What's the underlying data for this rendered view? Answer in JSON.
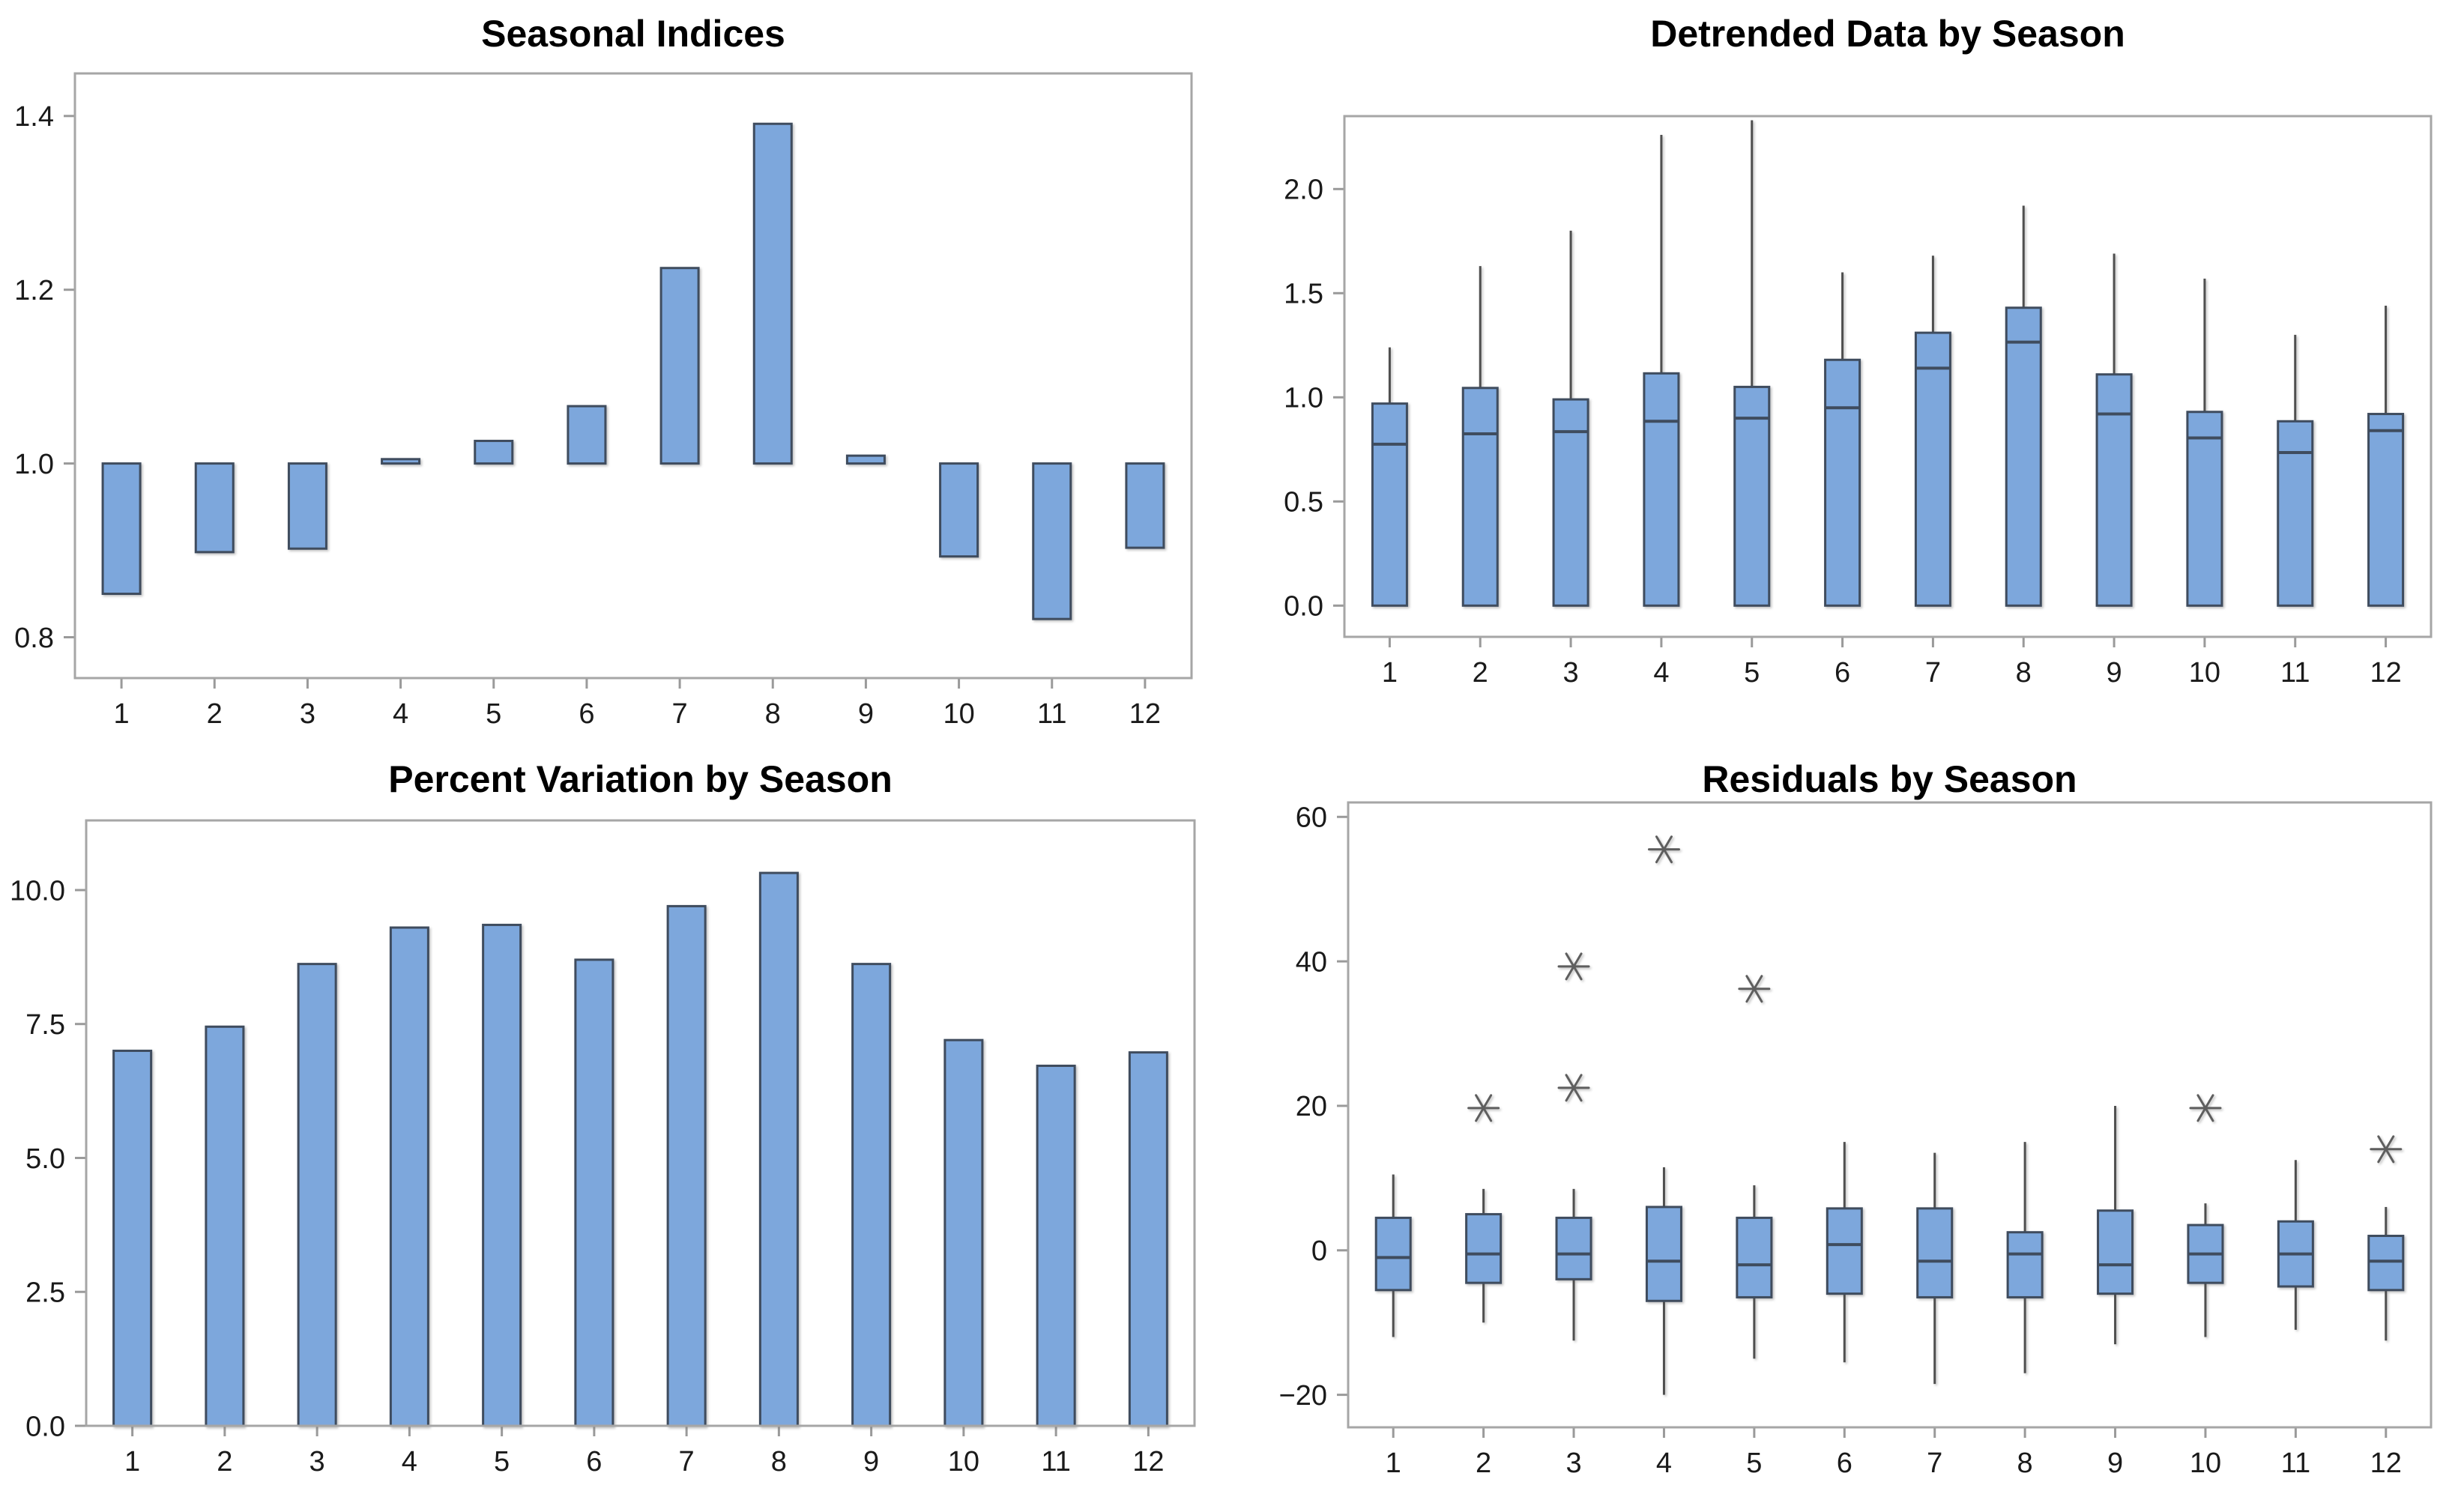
{
  "page": {
    "background": "#ffffff"
  },
  "colors": {
    "box_fill": "#7DA7DC",
    "box_border": "#3F4C5E",
    "median": "#3F4C5E",
    "whisker": "#4F4F4F",
    "outlier": "#5E5E5E",
    "frame": "#A6A6A6",
    "tick": "#9A9A9A",
    "label": "#1A1A1A",
    "title": "#000000"
  },
  "chart_data": [
    {
      "id": "seasonal-indices",
      "type": "bar",
      "title": "Seasonal Indices",
      "xlabel": "",
      "ylabel": "",
      "grid": false,
      "categories": [
        "1",
        "2",
        "3",
        "4",
        "5",
        "6",
        "7",
        "8",
        "9",
        "10",
        "11",
        "12"
      ],
      "baseline": 1.0,
      "values": [
        0.85,
        0.898,
        0.902,
        1.005,
        1.026,
        1.066,
        1.225,
        1.391,
        1.009,
        0.893,
        0.821,
        0.903
      ],
      "ylim": [
        0.753,
        1.449
      ],
      "yticks": [
        {
          "v": 0.8,
          "label": "0.8"
        },
        {
          "v": 1.0,
          "label": "1.0"
        },
        {
          "v": 1.2,
          "label": "1.2"
        },
        {
          "v": 1.4,
          "label": "1.4"
        }
      ]
    },
    {
      "id": "detrended-data-by-season",
      "type": "boxplot",
      "title": "Detrended Data by Season",
      "xlabel": "",
      "ylabel": "",
      "grid": false,
      "categories": [
        "1",
        "2",
        "3",
        "4",
        "5",
        "6",
        "7",
        "8",
        "9",
        "10",
        "11",
        "12"
      ],
      "boxes": [
        {
          "whislo": 0.0,
          "q1": 0.0,
          "med": 0.775,
          "q3": 0.97,
          "whishi": 1.24,
          "outliers": []
        },
        {
          "whislo": 0.0,
          "q1": 0.0,
          "med": 0.825,
          "q3": 1.045,
          "whishi": 1.63,
          "outliers": []
        },
        {
          "whislo": 0.0,
          "q1": 0.0,
          "med": 0.835,
          "q3": 0.99,
          "whishi": 1.8,
          "outliers": []
        },
        {
          "whislo": 0.0,
          "q1": 0.0,
          "med": 0.885,
          "q3": 1.115,
          "whishi": 2.26,
          "outliers": []
        },
        {
          "whislo": 0.0,
          "q1": 0.0,
          "med": 0.9,
          "q3": 1.05,
          "whishi": 2.33,
          "outliers": []
        },
        {
          "whislo": 0.0,
          "q1": 0.0,
          "med": 0.95,
          "q3": 1.18,
          "whishi": 1.6,
          "outliers": []
        },
        {
          "whislo": 0.0,
          "q1": 0.0,
          "med": 1.14,
          "q3": 1.31,
          "whishi": 1.68,
          "outliers": []
        },
        {
          "whislo": 0.0,
          "q1": 0.0,
          "med": 1.265,
          "q3": 1.43,
          "whishi": 1.92,
          "outliers": []
        },
        {
          "whislo": 0.0,
          "q1": 0.0,
          "med": 0.92,
          "q3": 1.11,
          "whishi": 1.69,
          "outliers": []
        },
        {
          "whislo": 0.0,
          "q1": 0.0,
          "med": 0.805,
          "q3": 0.93,
          "whishi": 1.57,
          "outliers": []
        },
        {
          "whislo": 0.0,
          "q1": 0.0,
          "med": 0.735,
          "q3": 0.885,
          "whishi": 1.3,
          "outliers": []
        },
        {
          "whislo": 0.0,
          "q1": 0.0,
          "med": 0.84,
          "q3": 0.92,
          "whishi": 1.44,
          "outliers": []
        }
      ],
      "ylim": [
        -0.15,
        2.35
      ],
      "yticks": [
        {
          "v": 0.0,
          "label": "0.0"
        },
        {
          "v": 0.5,
          "label": "0.5"
        },
        {
          "v": 1.0,
          "label": "1.0"
        },
        {
          "v": 1.5,
          "label": "1.5"
        },
        {
          "v": 2.0,
          "label": "2.0"
        }
      ]
    },
    {
      "id": "percent-variation-by-season",
      "type": "bar",
      "title": "Percent Variation by Season",
      "xlabel": "",
      "ylabel": "",
      "grid": false,
      "categories": [
        "1",
        "2",
        "3",
        "4",
        "5",
        "6",
        "7",
        "8",
        "9",
        "10",
        "11",
        "12"
      ],
      "baseline": 0.0,
      "values": [
        7.0,
        7.45,
        8.62,
        9.3,
        9.35,
        8.7,
        9.7,
        10.32,
        8.62,
        7.2,
        6.72,
        6.97
      ],
      "ylim": [
        0,
        11.3
      ],
      "yticks": [
        {
          "v": 0.0,
          "label": "0.0"
        },
        {
          "v": 2.5,
          "label": "2.5"
        },
        {
          "v": 5.0,
          "label": "5.0"
        },
        {
          "v": 7.5,
          "label": "7.5"
        },
        {
          "v": 10.0,
          "label": "10.0"
        }
      ]
    },
    {
      "id": "residuals-by-season",
      "type": "boxplot",
      "title": "Residuals by Season",
      "xlabel": "",
      "ylabel": "",
      "grid": false,
      "categories": [
        "1",
        "2",
        "3",
        "4",
        "5",
        "6",
        "7",
        "8",
        "9",
        "10",
        "11",
        "12"
      ],
      "boxes": [
        {
          "whislo": -12.0,
          "q1": -5.5,
          "med": -1.0,
          "q3": 4.5,
          "whishi": 10.5,
          "outliers": []
        },
        {
          "whislo": -10.0,
          "q1": -4.5,
          "med": -0.5,
          "q3": 5.0,
          "whishi": 8.5,
          "outliers": [
            19.7
          ]
        },
        {
          "whislo": -12.5,
          "q1": -4.0,
          "med": -0.5,
          "q3": 4.5,
          "whishi": 8.5,
          "outliers": [
            22.5,
            39.3
          ]
        },
        {
          "whislo": -20.0,
          "q1": -7.0,
          "med": -1.5,
          "q3": 6.0,
          "whishi": 11.5,
          "outliers": [
            55.5
          ]
        },
        {
          "whislo": -15.0,
          "q1": -6.5,
          "med": -2.0,
          "q3": 4.5,
          "whishi": 9.0,
          "outliers": [
            36.2
          ]
        },
        {
          "whislo": -15.5,
          "q1": -6.0,
          "med": 0.8,
          "q3": 5.8,
          "whishi": 15.0,
          "outliers": []
        },
        {
          "whislo": -18.5,
          "q1": -6.5,
          "med": -1.5,
          "q3": 5.8,
          "whishi": 13.5,
          "outliers": []
        },
        {
          "whislo": -17.0,
          "q1": -6.5,
          "med": -0.5,
          "q3": 2.5,
          "whishi": 15.0,
          "outliers": []
        },
        {
          "whislo": -13.0,
          "q1": -6.0,
          "med": -2.0,
          "q3": 5.5,
          "whishi": 20.0,
          "outliers": []
        },
        {
          "whislo": -12.0,
          "q1": -4.5,
          "med": -0.5,
          "q3": 3.5,
          "whishi": 6.5,
          "outliers": [
            19.7
          ]
        },
        {
          "whislo": -11.0,
          "q1": -5.0,
          "med": -0.5,
          "q3": 4.0,
          "whishi": 12.5,
          "outliers": []
        },
        {
          "whislo": -12.5,
          "q1": -5.5,
          "med": -1.5,
          "q3": 2.0,
          "whishi": 6.0,
          "outliers": [
            14.0
          ]
        }
      ],
      "ylim": [
        -24.5,
        62
      ],
      "yticks": [
        {
          "v": -20,
          "label": "−20"
        },
        {
          "v": 0,
          "label": "0"
        },
        {
          "v": 20,
          "label": "20"
        },
        {
          "v": 40,
          "label": "40"
        },
        {
          "v": 60,
          "label": "60"
        }
      ]
    }
  ]
}
